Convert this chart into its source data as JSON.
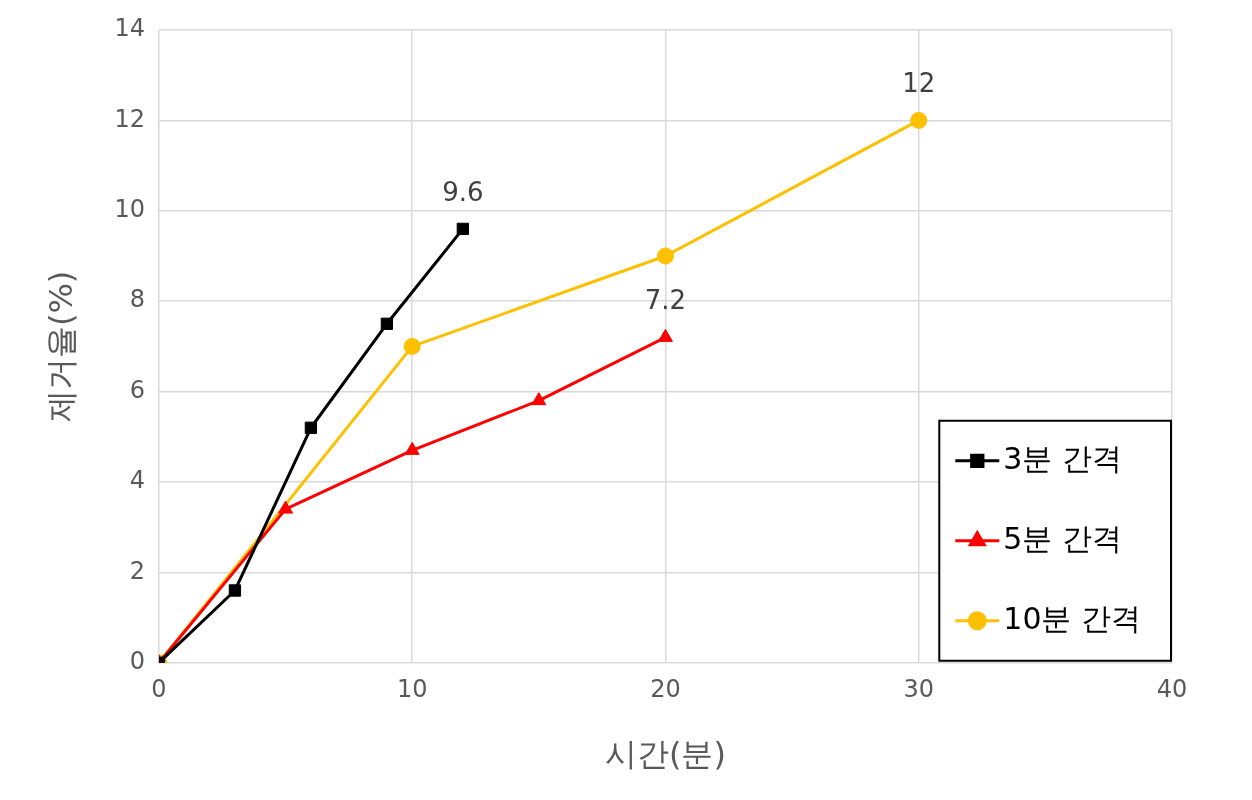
{
  "chart_data": {
    "type": "line",
    "xlabel": "시간(분)",
    "ylabel": "제거율(%)",
    "xlim": [
      0,
      40
    ],
    "xticks": [
      0,
      10,
      20,
      30,
      40
    ],
    "ylim": [
      0,
      14
    ],
    "yticks": [
      0,
      2,
      4,
      6,
      8,
      10,
      12,
      14
    ],
    "grid": true,
    "legend": "bottom right",
    "line_style": "solid",
    "series": [
      {
        "name": "3분 간격",
        "color": "#000000",
        "marker": "square",
        "x": [
          0,
          3,
          6,
          9,
          12
        ],
        "values": [
          0,
          1.6,
          5.2,
          7.5,
          9.6
        ],
        "value_labels": [
          null,
          null,
          null,
          null,
          "9.6"
        ]
      },
      {
        "name": "5분 간격",
        "color": "#ff0000",
        "marker": "triangle",
        "x": [
          0,
          5,
          10,
          15,
          20
        ],
        "values": [
          0,
          3.4,
          4.7,
          5.8,
          7.2
        ],
        "value_labels": [
          null,
          null,
          null,
          null,
          "7.2"
        ]
      },
      {
        "name": "10분 간격",
        "color": "#ffc000",
        "marker": "circle",
        "x": [
          0,
          10,
          20,
          30
        ],
        "values": [
          0,
          7.0,
          9.0,
          12
        ],
        "value_labels": [
          null,
          null,
          null,
          "12"
        ]
      }
    ]
  }
}
